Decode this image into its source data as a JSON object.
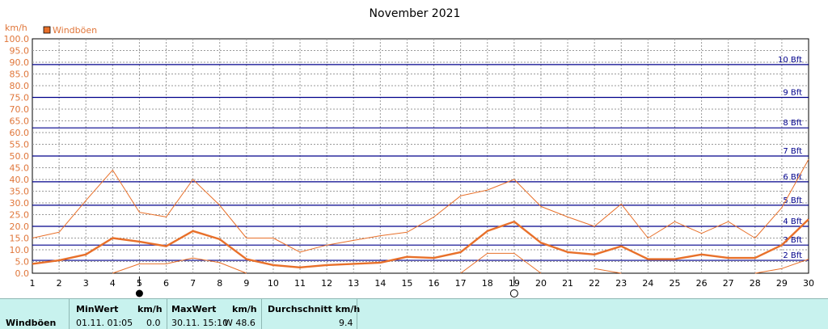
{
  "chart_data": {
    "type": "line",
    "title": "November 2021",
    "ylabel": "km/h",
    "ylim": [
      0,
      100
    ],
    "yticks": [
      "0.0",
      "5.0",
      "10.0",
      "15.0",
      "20.0",
      "25.0",
      "30.0",
      "35.0",
      "40.0",
      "45.0",
      "50.0",
      "55.0",
      "60.0",
      "65.0",
      "70.0",
      "75.0",
      "80.0",
      "85.0",
      "90.0",
      "95.0",
      "100.0"
    ],
    "x": [
      1,
      2,
      3,
      4,
      5,
      6,
      7,
      8,
      9,
      10,
      11,
      12,
      13,
      14,
      15,
      16,
      17,
      18,
      19,
      20,
      21,
      22,
      23,
      24,
      25,
      26,
      27,
      28,
      29,
      30
    ],
    "grid": true,
    "legend": "top-left",
    "series": [
      {
        "name": "Windböen",
        "role": "average",
        "color": "#e8702a",
        "values": [
          4,
          5.5,
          8,
          15,
          13.5,
          11.5,
          18,
          14.5,
          6,
          3.5,
          2.5,
          3.5,
          4,
          4.5,
          7,
          6.5,
          9,
          18,
          22,
          13,
          9,
          8,
          11.5,
          6,
          6,
          8,
          6.5,
          6.5,
          12,
          23
        ]
      },
      {
        "role": "max",
        "color": "#e8702a",
        "values": [
          15,
          17.5,
          31,
          44,
          26,
          24,
          40,
          29,
          15,
          15,
          9,
          12,
          14,
          16,
          17.5,
          24,
          33,
          35.5,
          40,
          28.5,
          24,
          20,
          29.5,
          15,
          22,
          17,
          22,
          15,
          28,
          48.6
        ]
      },
      {
        "role": "min",
        "color": "#e8702a",
        "values": [
          null,
          null,
          null,
          0,
          4,
          4,
          6.5,
          4.5,
          0,
          null,
          null,
          null,
          null,
          null,
          null,
          null,
          0,
          8.5,
          8.5,
          0,
          null,
          2,
          0,
          null,
          null,
          null,
          null,
          0,
          2,
          6
        ]
      }
    ],
    "beaufort": [
      {
        "label": "2 Bft",
        "value": 5.5
      },
      {
        "label": "3 Bft",
        "value": 12
      },
      {
        "label": "4 Bft",
        "value": 20
      },
      {
        "label": "5 Bft",
        "value": 29
      },
      {
        "label": "6 Bft",
        "value": 39
      },
      {
        "label": "7 Bft",
        "value": 50
      },
      {
        "label": "8 Bft",
        "value": 62
      },
      {
        "label": "9 Bft",
        "value": 75
      },
      {
        "label": "10 Bft",
        "value": 89
      }
    ],
    "moon_phases": [
      {
        "day": 5,
        "phase": "new-moon"
      },
      {
        "day": 19,
        "phase": "full-moon"
      }
    ]
  },
  "stats": {
    "row_label": "Windböen",
    "min_header": "MinWert",
    "min_unit": "km/h",
    "min_time": "01.11.  01:05",
    "min_value": "0.0",
    "max_header": "MaxWert",
    "max_unit": "km/h",
    "max_time": "30.11.  15:10",
    "max_value": "W 48.6",
    "avg_header": "Durchschnitt km/h",
    "avg_value": "9.4"
  }
}
